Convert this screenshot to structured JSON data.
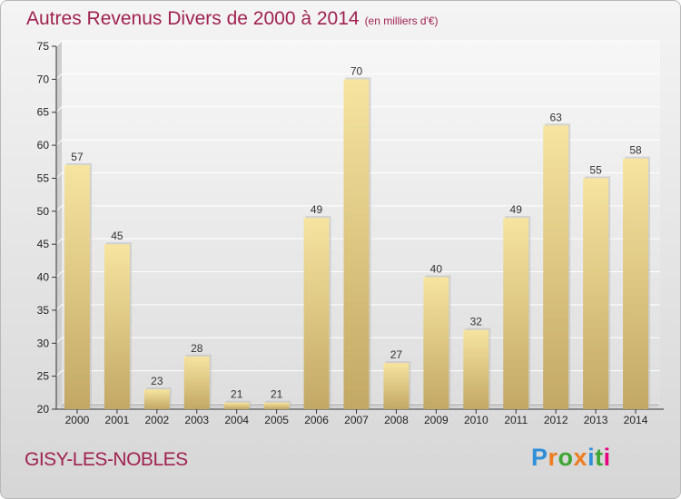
{
  "title": "Autres Revenus Divers de 2000 à 2014",
  "unit_note": "(en milliers d'€)",
  "commune": "GISY-LES-NOBLES",
  "logo": {
    "text": "Proxiti",
    "colors": [
      "#2f8fd8",
      "#ef7d1f",
      "#3fa535",
      "#ef7d1f",
      "#2f8fd8",
      "#3fa535",
      "#e6007e"
    ]
  },
  "colors": {
    "title": "#a0224f",
    "bar_light": "#f6e4a0",
    "bar_dark": "#c2a864"
  },
  "chart_data": {
    "type": "bar",
    "categories": [
      "2000",
      "2001",
      "2002",
      "2003",
      "2004",
      "2005",
      "2006",
      "2007",
      "2008",
      "2009",
      "2010",
      "2011",
      "2012",
      "2013",
      "2014"
    ],
    "values": [
      57,
      45,
      23,
      28,
      21,
      21,
      49,
      70,
      27,
      40,
      32,
      49,
      63,
      55,
      58
    ],
    "ylim": [
      20,
      75
    ],
    "yticks": [
      20,
      25,
      30,
      35,
      40,
      45,
      50,
      55,
      60,
      65,
      70,
      75
    ],
    "grid": true,
    "data_labels": true
  }
}
